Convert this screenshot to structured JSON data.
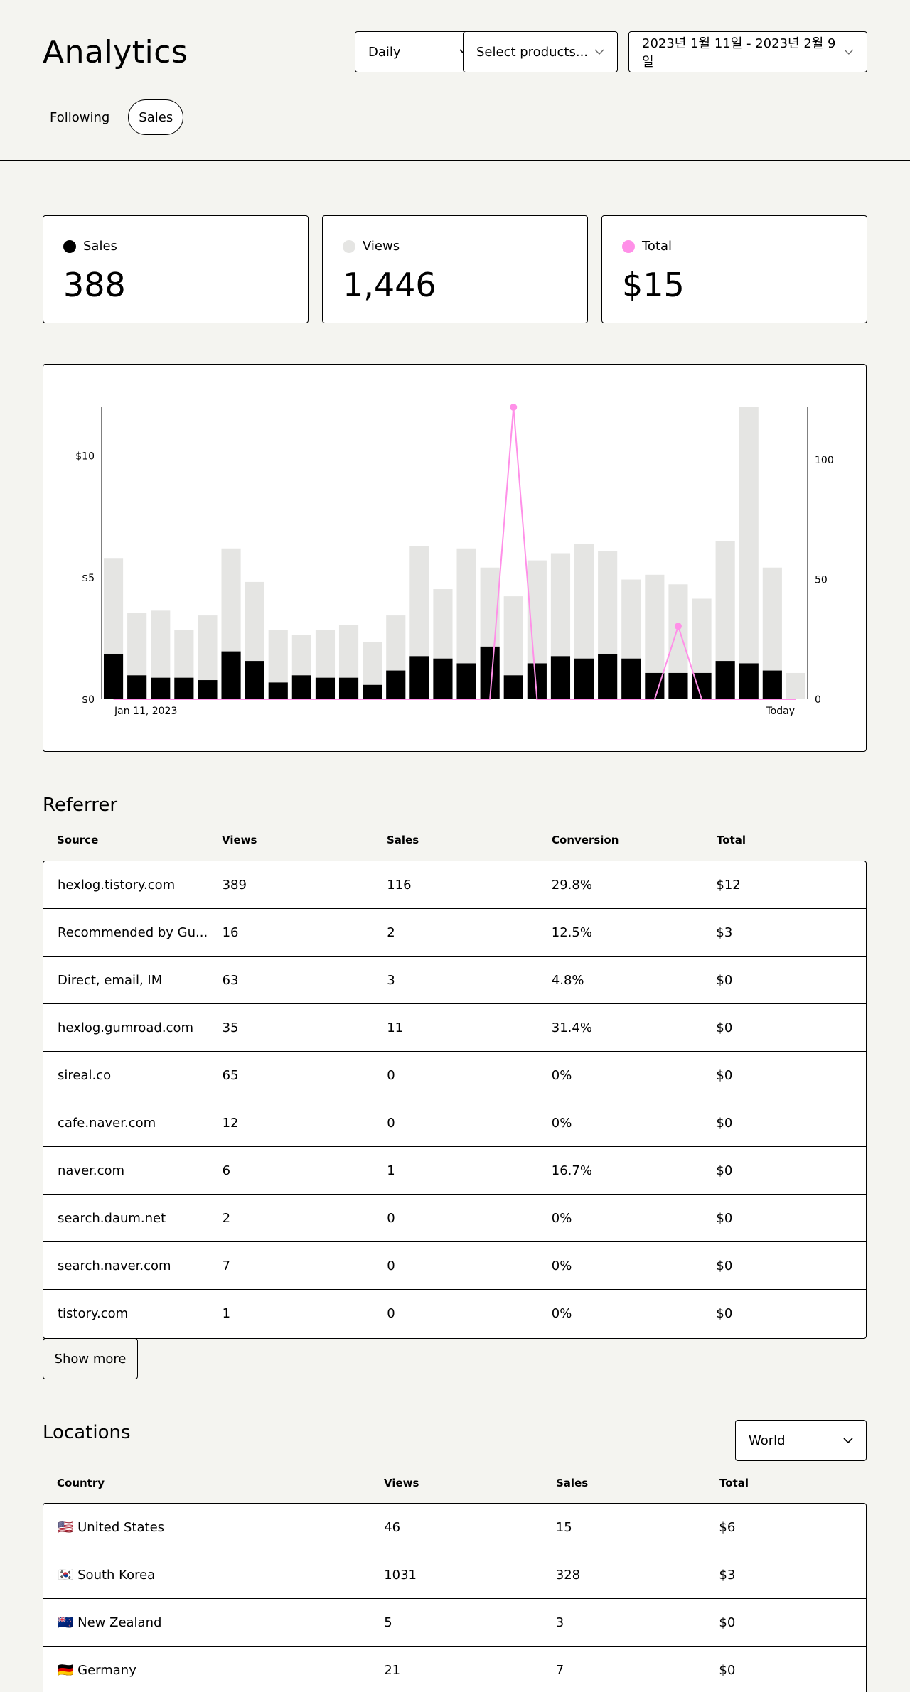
{
  "header": {
    "title": "Analytics",
    "period_select": "Daily",
    "product_select": "Select products...",
    "date_range": "2023년 1월 11일 - 2023년 2월 9일"
  },
  "tabs": [
    {
      "label": "Following",
      "active": false
    },
    {
      "label": "Sales",
      "active": true
    }
  ],
  "stats": [
    {
      "label": "Sales",
      "value": "388",
      "color": "#000000"
    },
    {
      "label": "Views",
      "value": "1,446",
      "color": "#e5e5e3"
    },
    {
      "label": "Total",
      "value": "$15",
      "color": "#ff90e8"
    }
  ],
  "chart_data": {
    "type": "bar",
    "title": "",
    "x_start_label": "Jan 11, 2023",
    "x_end_label": "Today",
    "left_axis": {
      "ticks": [
        "$0",
        "$5",
        "$10"
      ],
      "values": [
        0,
        5,
        10
      ],
      "ylim": [
        0,
        12
      ]
    },
    "right_axis": {
      "ticks": [
        "0",
        "50",
        "100"
      ],
      "values": [
        0,
        50,
        100
      ],
      "ylim": [
        0,
        122
      ]
    },
    "series": [
      {
        "name": "Views",
        "axis": "right",
        "color": "#e5e5e3",
        "values": [
          59,
          36,
          37,
          29,
          35,
          63,
          49,
          29,
          27,
          29,
          31,
          24,
          35,
          64,
          46,
          63,
          55,
          43,
          58,
          61,
          65,
          62,
          50,
          52,
          48,
          42,
          66,
          122,
          55,
          11
        ]
      },
      {
        "name": "Sales",
        "axis": "right",
        "color": "#000000",
        "values": [
          19,
          10,
          9,
          9,
          8,
          20,
          16,
          7,
          10,
          9,
          9,
          6,
          12,
          18,
          17,
          15,
          22,
          10,
          15,
          18,
          17,
          19,
          17,
          11,
          11,
          11,
          16,
          15,
          12,
          0
        ]
      },
      {
        "name": "Total",
        "axis": "left",
        "color": "#ff90e8",
        "values": [
          0,
          0,
          0,
          0,
          0,
          0,
          0,
          0,
          0,
          0,
          0,
          0,
          0,
          0,
          0,
          0,
          0,
          12,
          0,
          0,
          0,
          0,
          0,
          0,
          3,
          0,
          0,
          0,
          0,
          0
        ]
      }
    ]
  },
  "referrer": {
    "title": "Referrer",
    "columns": [
      "Source",
      "Views",
      "Sales",
      "Conversion",
      "Total"
    ],
    "rows": [
      [
        "hexlog.tistory.com",
        "389",
        "116",
        "29.8%",
        "$12"
      ],
      [
        "Recommended by Gu...",
        "16",
        "2",
        "12.5%",
        "$3"
      ],
      [
        "Direct, email, IM",
        "63",
        "3",
        "4.8%",
        "$0"
      ],
      [
        "hexlog.gumroad.com",
        "35",
        "11",
        "31.4%",
        "$0"
      ],
      [
        "sireal.co",
        "65",
        "0",
        "0%",
        "$0"
      ],
      [
        "cafe.naver.com",
        "12",
        "0",
        "0%",
        "$0"
      ],
      [
        "naver.com",
        "6",
        "1",
        "16.7%",
        "$0"
      ],
      [
        "search.daum.net",
        "2",
        "0",
        "0%",
        "$0"
      ],
      [
        "search.naver.com",
        "7",
        "0",
        "0%",
        "$0"
      ],
      [
        "tistory.com",
        "1",
        "0",
        "0%",
        "$0"
      ]
    ],
    "show_more": "Show more"
  },
  "locations": {
    "title": "Locations",
    "region_select": "World",
    "columns": [
      "Country",
      "Views",
      "Sales",
      "Total"
    ],
    "rows": [
      [
        "🇺🇸 United States",
        "46",
        "15",
        "$6"
      ],
      [
        "🇰🇷 South Korea",
        "1031",
        "328",
        "$3"
      ],
      [
        "🇳🇿 New Zealand",
        "5",
        "3",
        "$0"
      ],
      [
        "🇩🇪 Germany",
        "21",
        "7",
        "$0"
      ]
    ]
  }
}
